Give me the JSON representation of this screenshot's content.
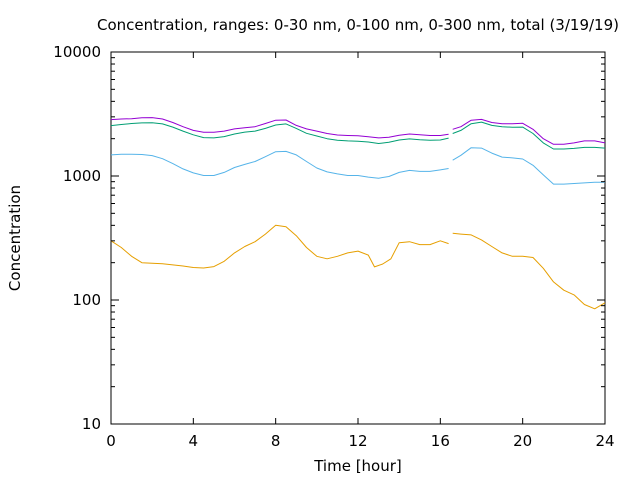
{
  "chart_data": {
    "type": "line",
    "title": "Concentration, ranges: 0-30 nm, 0-100 nm, 0-300 nm, total (3/19/19)",
    "xlabel": "Time [hour]",
    "ylabel": "Concentration",
    "xlim": [
      0,
      24
    ],
    "ylim": [
      10,
      10000
    ],
    "yscale": "log",
    "xticks": [
      0,
      4,
      8,
      12,
      16,
      20,
      24
    ],
    "xtick_labels": [
      "0",
      "4",
      "8",
      "12",
      "16",
      "20",
      "24"
    ],
    "yticks": [
      10,
      100,
      1000,
      10000
    ],
    "ytick_labels": [
      "10",
      "100",
      "1000",
      "10000"
    ],
    "grid": false,
    "legend": "none",
    "series": [
      {
        "color": "#e69f00",
        "segments": [
          {
            "x": [
              0,
              0.5,
              1,
              1.5,
              2,
              2.5,
              3,
              3.5,
              4,
              4.5,
              5,
              5.5,
              6,
              6.5,
              7,
              7.5,
              8,
              8.5,
              9,
              9.5,
              10,
              10.5,
              11,
              11.5,
              12,
              12.5,
              12.8,
              13.2,
              13.6,
              14,
              14.5,
              15,
              15.5,
              16,
              16.4
            ],
            "y": [
              300,
              265,
              225,
              200,
              198,
              196,
              192,
              188,
              183,
              181,
              186,
              205,
              240,
              270,
              295,
              340,
              400,
              390,
              330,
              265,
              225,
              215,
              225,
              240,
              248,
              230,
              185,
              195,
              215,
              290,
              295,
              280,
              280,
              300,
              285
            ]
          },
          {
            "x": [
              16.6,
              17,
              17.5,
              18,
              18.5,
              19,
              19.5,
              20,
              20.5,
              21,
              21.5,
              22,
              22.5,
              23,
              23.5,
              24
            ],
            "y": [
              345,
              340,
              335,
              305,
              270,
              240,
              225,
              225,
              220,
              180,
              140,
              120,
              110,
              92,
              85,
              95
            ]
          }
        ]
      },
      {
        "color": "#56b4e9",
        "segments": [
          {
            "x": [
              0,
              0.5,
              1,
              1.5,
              2,
              2.5,
              3,
              3.5,
              4,
              4.5,
              5,
              5.5,
              6,
              6.5,
              7,
              7.5,
              8,
              8.5,
              9,
              9.5,
              10,
              10.5,
              11,
              11.5,
              12,
              12.5,
              13,
              13.5,
              14,
              14.5,
              15,
              15.5,
              16,
              16.4
            ],
            "y": [
              1480,
              1500,
              1500,
              1490,
              1460,
              1380,
              1260,
              1140,
              1060,
              1010,
              1010,
              1070,
              1170,
              1240,
              1310,
              1430,
              1570,
              1580,
              1480,
              1310,
              1160,
              1080,
              1040,
              1010,
              1010,
              980,
              960,
              990,
              1070,
              1110,
              1090,
              1090,
              1120,
              1150
            ]
          },
          {
            "x": [
              16.6,
              17,
              17.5,
              18,
              18.5,
              19,
              19.5,
              20,
              20.5,
              21,
              21.5,
              22,
              22.5,
              23,
              23.5,
              24
            ],
            "y": [
              1340,
              1470,
              1690,
              1680,
              1530,
              1420,
              1400,
              1370,
              1220,
              1020,
              860,
              860,
              870,
              880,
              890,
              890
            ]
          }
        ]
      },
      {
        "color": "#009e73",
        "segments": [
          {
            "x": [
              0,
              0.5,
              1,
              1.5,
              2,
              2.5,
              3,
              3.5,
              4,
              4.5,
              5,
              5.5,
              6,
              6.5,
              7,
              7.5,
              8,
              8.5,
              9,
              9.5,
              10,
              10.5,
              11,
              11.5,
              12,
              12.5,
              13,
              13.5,
              14,
              14.5,
              15,
              15.5,
              16,
              16.4
            ],
            "y": [
              2550,
              2600,
              2650,
              2680,
              2690,
              2630,
              2480,
              2300,
              2150,
              2040,
              2030,
              2080,
              2180,
              2260,
              2300,
              2420,
              2580,
              2630,
              2420,
              2210,
              2100,
              2000,
              1940,
              1920,
              1910,
              1880,
              1830,
              1870,
              1950,
              1990,
              1960,
              1940,
              1950,
              2020
            ]
          },
          {
            "x": [
              16.6,
              17,
              17.5,
              18,
              18.5,
              19,
              19.5,
              20,
              20.5,
              21,
              21.5,
              22,
              22.5,
              23,
              23.5,
              24
            ],
            "y": [
              2200,
              2330,
              2640,
              2720,
              2560,
              2500,
              2470,
              2480,
              2200,
              1850,
              1650,
              1650,
              1670,
              1700,
              1700,
              1680
            ]
          }
        ]
      },
      {
        "color": "#9400d3",
        "segments": [
          {
            "x": [
              0,
              0.5,
              1,
              1.5,
              2,
              2.5,
              3,
              3.5,
              4,
              4.5,
              5,
              5.5,
              6,
              6.5,
              7,
              7.5,
              8,
              8.5,
              9,
              9.5,
              10,
              10.5,
              11,
              11.5,
              12,
              12.5,
              13,
              13.5,
              14,
              14.5,
              15,
              15.5,
              16,
              16.4
            ],
            "y": [
              2850,
              2880,
              2900,
              2950,
              2960,
              2880,
              2700,
              2500,
              2330,
              2250,
              2250,
              2300,
              2400,
              2450,
              2500,
              2650,
              2820,
              2830,
              2560,
              2400,
              2300,
              2200,
              2140,
              2120,
              2110,
              2070,
              2030,
              2050,
              2130,
              2180,
              2150,
              2120,
              2120,
              2170
            ]
          },
          {
            "x": [
              16.6,
              17,
              17.5,
              18,
              18.5,
              19,
              19.5,
              20,
              20.5,
              21,
              21.5,
              22,
              22.5,
              23,
              23.5,
              24
            ],
            "y": [
              2380,
              2500,
              2820,
              2860,
              2700,
              2640,
              2640,
              2660,
              2380,
              2000,
              1800,
              1800,
              1850,
              1920,
              1920,
              1850
            ]
          }
        ]
      }
    ]
  }
}
